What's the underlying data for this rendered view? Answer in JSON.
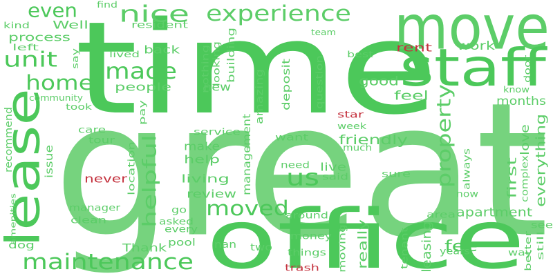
{
  "palette": {
    "green_dark": "#4cc85a",
    "green_mid": "#5ccd68",
    "green_light": "#76d37e",
    "red": "#c4323e",
    "background": "#ffffff"
  },
  "words": [
    {
      "text": "time",
      "color": "green_dark"
    },
    {
      "text": "great",
      "color": "green_light"
    },
    {
      "text": "move",
      "color": "green_mid"
    },
    {
      "text": "office",
      "color": "green_dark"
    },
    {
      "text": "staff",
      "color": "green_dark"
    },
    {
      "text": "lease",
      "color": "green_dark"
    },
    {
      "text": "experience",
      "color": "green_mid"
    },
    {
      "text": "nice",
      "color": "green_mid"
    },
    {
      "text": "even",
      "color": "green_dark"
    },
    {
      "text": "unit",
      "color": "green_dark"
    },
    {
      "text": "made",
      "color": "green_dark"
    },
    {
      "text": "home",
      "color": "green_dark"
    },
    {
      "text": "maintenance",
      "color": "green_dark"
    },
    {
      "text": "moved",
      "color": "green_dark"
    },
    {
      "text": "property",
      "color": "green_mid"
    },
    {
      "text": "helpful",
      "color": "green_mid"
    },
    {
      "text": "us",
      "color": "green_dark"
    },
    {
      "text": "apartment",
      "color": "green_mid"
    },
    {
      "text": "friendly",
      "color": "green_mid"
    },
    {
      "text": "everything",
      "color": "green_mid"
    },
    {
      "text": "leasing",
      "color": "green_mid"
    },
    {
      "text": "fee",
      "color": "green_dark"
    },
    {
      "text": "really",
      "color": "green_mid"
    },
    {
      "text": "first",
      "color": "green_mid"
    },
    {
      "text": "good",
      "color": "green_mid"
    },
    {
      "text": "months",
      "color": "green_mid"
    },
    {
      "text": "feel",
      "color": "green_mid"
    },
    {
      "text": "work",
      "color": "green_mid"
    },
    {
      "text": "rent",
      "color": "red"
    },
    {
      "text": "people",
      "color": "green_mid"
    },
    {
      "text": "back",
      "color": "green_mid"
    },
    {
      "text": "new",
      "color": "green_mid"
    },
    {
      "text": "process",
      "color": "green_mid"
    },
    {
      "text": "Well",
      "color": "green_mid"
    },
    {
      "text": "kind",
      "color": "green_mid"
    },
    {
      "text": "left",
      "color": "green_mid"
    },
    {
      "text": "find",
      "color": "green_mid"
    },
    {
      "text": "resident",
      "color": "green_mid"
    },
    {
      "text": "team",
      "color": "green_mid"
    },
    {
      "text": "best",
      "color": "green_mid"
    },
    {
      "text": "lived",
      "color": "green_mid"
    },
    {
      "text": "say",
      "color": "green_mid"
    },
    {
      "text": "nothing",
      "color": "green_mid"
    },
    {
      "text": "looking",
      "color": "green_mid"
    },
    {
      "text": "building",
      "color": "green_mid"
    },
    {
      "text": "deposit",
      "color": "green_mid"
    },
    {
      "text": "question",
      "color": "green_mid"
    },
    {
      "text": "door",
      "color": "green_mid"
    },
    {
      "text": "know",
      "color": "green_mid"
    },
    {
      "text": "community",
      "color": "green_mid"
    },
    {
      "text": "took",
      "color": "green_mid"
    },
    {
      "text": "recommend",
      "color": "green_mid"
    },
    {
      "text": "pay",
      "color": "green_mid"
    },
    {
      "text": "amazing",
      "color": "green_mid"
    },
    {
      "text": "management",
      "color": "green_mid"
    },
    {
      "text": "star",
      "color": "red"
    },
    {
      "text": "week",
      "color": "green_mid"
    },
    {
      "text": "much",
      "color": "green_mid"
    },
    {
      "text": "love",
      "color": "green_mid"
    },
    {
      "text": "always",
      "color": "green_mid"
    },
    {
      "text": "complex",
      "color": "green_mid"
    },
    {
      "text": "care",
      "color": "green_mid"
    },
    {
      "text": "tour",
      "color": "green_mid"
    },
    {
      "text": "issue",
      "color": "green_mid"
    },
    {
      "text": "location",
      "color": "green_mid"
    },
    {
      "text": "service",
      "color": "green_mid"
    },
    {
      "text": "make",
      "color": "green_mid"
    },
    {
      "text": "help",
      "color": "green_mid"
    },
    {
      "text": "want",
      "color": "green_mid"
    },
    {
      "text": "need",
      "color": "green_mid"
    },
    {
      "text": "live",
      "color": "green_mid"
    },
    {
      "text": "said",
      "color": "green_mid"
    },
    {
      "text": "sure",
      "color": "green_mid"
    },
    {
      "text": "now",
      "color": "green_mid"
    },
    {
      "text": "never",
      "color": "red"
    },
    {
      "text": "living",
      "color": "green_mid"
    },
    {
      "text": "review",
      "color": "green_mid"
    },
    {
      "text": "manager",
      "color": "green_mid"
    },
    {
      "text": "clean",
      "color": "green_mid"
    },
    {
      "text": "amenities",
      "color": "green_mid"
    },
    {
      "text": "go",
      "color": "green_mid"
    },
    {
      "text": "asked",
      "color": "green_mid"
    },
    {
      "text": "every",
      "color": "green_mid"
    },
    {
      "text": "around",
      "color": "green_mid"
    },
    {
      "text": "area",
      "color": "green_mid"
    },
    {
      "text": "see",
      "color": "green_mid"
    },
    {
      "text": "still",
      "color": "green_mid"
    },
    {
      "text": "better",
      "color": "green_mid"
    },
    {
      "text": "way",
      "color": "green_mid"
    },
    {
      "text": "years",
      "color": "green_mid"
    },
    {
      "text": "tenant",
      "color": "green_mid"
    },
    {
      "text": "money",
      "color": "green_mid"
    },
    {
      "text": "moving",
      "color": "green_mid"
    },
    {
      "text": "things",
      "color": "green_mid"
    },
    {
      "text": "trash",
      "color": "red"
    },
    {
      "text": "two",
      "color": "green_mid"
    },
    {
      "text": "nan",
      "color": "green_mid"
    },
    {
      "text": "pool",
      "color": "green_mid"
    },
    {
      "text": "Thank",
      "color": "green_mid"
    },
    {
      "text": "dog",
      "color": "green_mid"
    }
  ]
}
